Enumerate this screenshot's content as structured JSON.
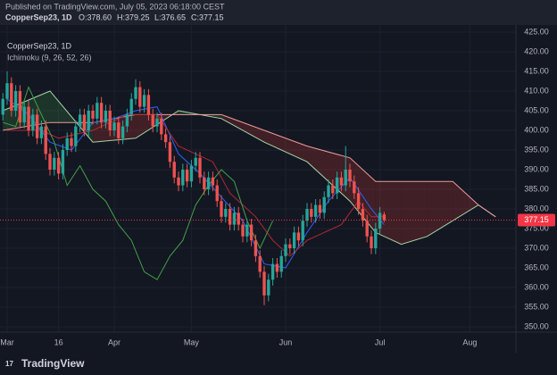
{
  "header": {
    "published": "Published on TradingView.com, July 05, 2023 06:18:00 CEST",
    "symbol": "CopperSep23, 1D",
    "ohlc": [
      "O:378.60",
      "H:379.25",
      "L:376.65",
      "C:377.15"
    ]
  },
  "footer": {
    "logo": "TradingView"
  },
  "chart_data": {
    "type": "candlestick",
    "symbol_label": "CopperSep23, 1D",
    "indicator_label": "Ichimoku (9, 26, 52, 26)",
    "up_color": "#26a69a",
    "down_color": "#ef5350",
    "xlim": [
      -1.67,
      118.75
    ],
    "ylim": [
      348.64,
      426.36
    ],
    "xticks": [
      {
        "value": 0,
        "label": "Mar"
      },
      {
        "value": 12,
        "label": "16"
      },
      {
        "value": 25,
        "label": "Apr"
      },
      {
        "value": 43,
        "label": "May"
      },
      {
        "value": 65,
        "label": "Jun"
      },
      {
        "value": 87,
        "label": "Jul"
      },
      {
        "value": 108,
        "label": "Aug"
      }
    ],
    "yticks": [
      {
        "value": 350,
        "label": "350.00"
      },
      {
        "value": 355,
        "label": "355.00"
      },
      {
        "value": 360,
        "label": "360.00"
      },
      {
        "value": 365,
        "label": "365.00"
      },
      {
        "value": 370,
        "label": "370.00"
      },
      {
        "value": 375,
        "label": "375.00"
      },
      {
        "value": 380,
        "label": "380.00"
      },
      {
        "value": 385,
        "label": "385.00"
      },
      {
        "value": 390,
        "label": "390.00"
      },
      {
        "value": 395,
        "label": "395.00"
      },
      {
        "value": 400,
        "label": "400.00"
      },
      {
        "value": 405,
        "label": "405.00"
      },
      {
        "value": 410,
        "label": "410.00"
      },
      {
        "value": 415,
        "label": "415.00"
      },
      {
        "value": 420,
        "label": "420.00"
      },
      {
        "value": 425,
        "label": "425.00"
      }
    ],
    "grid": true,
    "last_price": 377.15,
    "last_price_color": "#f23645",
    "x": [
      -1,
      0,
      1,
      2,
      3,
      4,
      5,
      6,
      7,
      8,
      9,
      10,
      11,
      12,
      13,
      14,
      15,
      16,
      17,
      18,
      19,
      20,
      21,
      22,
      23,
      24,
      25,
      26,
      27,
      28,
      29,
      30,
      31,
      32,
      33,
      34,
      35,
      36,
      37,
      38,
      39,
      40,
      41,
      42,
      43,
      44,
      45,
      46,
      47,
      48,
      49,
      50,
      51,
      52,
      53,
      54,
      55,
      56,
      57,
      58,
      59,
      60,
      61,
      62,
      63,
      64,
      65,
      66,
      67,
      68,
      69,
      70,
      71,
      72,
      73,
      74,
      75,
      76,
      77,
      78,
      79,
      80,
      81,
      82,
      83,
      84,
      85,
      86,
      87,
      88
    ],
    "candles": [
      [
        404,
        409.5,
        402.5,
        408
      ],
      [
        408,
        415,
        406.5,
        412
      ],
      [
        412,
        413.5,
        403.5,
        405
      ],
      [
        405,
        411.5,
        403.5,
        410
      ],
      [
        410,
        411.5,
        400.5,
        402
      ],
      [
        402,
        407.5,
        400.5,
        406
      ],
      [
        406,
        407.5,
        398.5,
        400
      ],
      [
        400,
        405.5,
        398.5,
        404
      ],
      [
        404,
        405.5,
        396.5,
        398
      ],
      [
        398,
        402.5,
        396.5,
        401
      ],
      [
        401,
        402.5,
        392.5,
        394
      ],
      [
        394,
        395.5,
        388.5,
        390
      ],
      [
        390,
        394.5,
        388.5,
        393
      ],
      [
        393,
        394.5,
        387.5,
        389
      ],
      [
        389,
        396.5,
        387.5,
        395
      ],
      [
        395,
        399.5,
        393.5,
        398
      ],
      [
        398,
        399.5,
        394.5,
        396
      ],
      [
        396,
        402.5,
        394.5,
        401
      ],
      [
        401,
        405.5,
        399.5,
        404
      ],
      [
        404,
        405.5,
        398.5,
        400
      ],
      [
        400,
        406.5,
        398.5,
        405
      ],
      [
        405,
        406.5,
        401.5,
        403
      ],
      [
        403,
        408.5,
        401.5,
        407
      ],
      [
        407,
        408.5,
        400.5,
        402
      ],
      [
        402,
        406.5,
        400.5,
        405
      ],
      [
        405,
        406.5,
        398.5,
        400
      ],
      [
        400,
        403.5,
        398.5,
        402
      ],
      [
        402,
        403.5,
        396.5,
        398
      ],
      [
        398,
        402.5,
        396.5,
        401
      ],
      [
        401,
        405.5,
        399.5,
        404
      ],
      [
        404,
        409.5,
        402.5,
        408
      ],
      [
        408,
        413,
        406.5,
        411
      ],
      [
        411,
        412.5,
        404.5,
        406
      ],
      [
        406,
        410.5,
        404.5,
        409
      ],
      [
        409,
        410.5,
        402.5,
        404
      ],
      [
        404,
        405.5,
        399.5,
        401
      ],
      [
        401,
        404.5,
        399.5,
        403
      ],
      [
        403,
        404.5,
        397.5,
        399
      ],
      [
        399,
        400.5,
        395.5,
        397
      ],
      [
        397,
        398.5,
        390.5,
        392
      ],
      [
        392,
        393.5,
        386.5,
        388
      ],
      [
        388,
        389.5,
        384.5,
        386
      ],
      [
        386,
        391.5,
        384.5,
        390
      ],
      [
        390,
        391.5,
        385.5,
        387
      ],
      [
        387,
        392.5,
        385.5,
        391
      ],
      [
        391,
        394.5,
        389.5,
        393
      ],
      [
        393,
        394.5,
        386.5,
        388
      ],
      [
        388,
        389.5,
        383.5,
        385
      ],
      [
        385,
        389.5,
        383.5,
        388
      ],
      [
        388,
        389.5,
        384.5,
        386
      ],
      [
        386,
        387.5,
        380.5,
        382
      ],
      [
        382,
        383.5,
        376.5,
        378
      ],
      [
        378,
        381.5,
        376.5,
        380
      ],
      [
        380,
        381.5,
        374.5,
        376
      ],
      [
        376,
        380.5,
        374.5,
        379
      ],
      [
        379,
        380.5,
        374.5,
        376
      ],
      [
        376,
        377.5,
        371.5,
        373
      ],
      [
        373,
        377.5,
        371.5,
        376
      ],
      [
        376,
        377.5,
        370.5,
        372
      ],
      [
        372,
        373.5,
        366.5,
        368
      ],
      [
        368,
        369.5,
        362.5,
        364
      ],
      [
        364,
        365.5,
        355.5,
        358
      ],
      [
        358,
        363.5,
        356.5,
        362
      ],
      [
        362,
        367.5,
        360.5,
        366
      ],
      [
        366,
        367.5,
        362.5,
        364
      ],
      [
        364,
        369.5,
        362.5,
        368
      ],
      [
        368,
        372.5,
        366.5,
        371
      ],
      [
        371,
        372.5,
        368.5,
        370
      ],
      [
        370,
        375.5,
        368.5,
        374
      ],
      [
        374,
        375.5,
        370.5,
        372
      ],
      [
        372,
        378.5,
        370.5,
        377
      ],
      [
        377,
        381.5,
        375.5,
        380
      ],
      [
        380,
        381.5,
        376.5,
        378
      ],
      [
        378,
        382.5,
        376.5,
        381
      ],
      [
        381,
        382.5,
        377.5,
        379
      ],
      [
        379,
        384.5,
        377.5,
        383
      ],
      [
        383,
        387.5,
        381.5,
        386
      ],
      [
        386,
        387.5,
        382.5,
        384
      ],
      [
        384,
        389.5,
        382.5,
        388
      ],
      [
        388,
        389.5,
        384.5,
        386
      ],
      [
        386,
        396,
        384.5,
        390
      ],
      [
        390,
        391.5,
        385.5,
        387
      ],
      [
        387,
        388.5,
        382.5,
        384
      ],
      [
        384,
        385.5,
        378.5,
        380
      ],
      [
        380,
        381.5,
        375.5,
        377
      ],
      [
        377,
        378.5,
        371.5,
        373
      ],
      [
        373,
        374.5,
        368.5,
        370
      ],
      [
        370,
        376.5,
        368.5,
        375
      ],
      [
        375,
        380.5,
        373.5,
        379
      ],
      [
        378.6,
        379.25,
        376.65,
        377.15
      ]
    ],
    "cloud": {
      "x": [
        -1,
        10,
        20,
        30,
        40,
        50,
        60,
        70,
        80,
        86,
        92,
        98,
        104,
        110,
        114
      ],
      "span_a": [
        405,
        410,
        397,
        398,
        405,
        403,
        397,
        392,
        382,
        374,
        371,
        373,
        377,
        381,
        378
      ],
      "span_b": [
        400,
        402,
        402,
        404,
        404,
        404,
        400,
        396,
        393,
        387,
        387,
        387,
        387,
        381,
        378
      ],
      "span_a_color": "#a5d6a7",
      "span_b_color": "#ef9a9a",
      "up_fill": "rgba(67,160,71,0.22)",
      "down_fill": "rgba(244,67,54,0.2)"
    },
    "lines": [
      {
        "color": "#2962ff",
        "x": [
          0,
          5,
          10,
          15,
          20,
          25,
          30,
          35,
          40,
          45,
          50,
          55,
          60,
          65,
          70,
          75,
          80,
          85,
          88
        ],
        "values": [
          408,
          404,
          397,
          395,
          402,
          403,
          405,
          406,
          394,
          389,
          383,
          377,
          366,
          365,
          374,
          382,
          388,
          380,
          376
        ]
      },
      {
        "color": "#b22833",
        "x": [
          0,
          8,
          12,
          20,
          28,
          35,
          40,
          48,
          52,
          58,
          62,
          66,
          70,
          78,
          82,
          85,
          88
        ],
        "values": [
          400,
          400,
          398,
          400,
          404,
          404,
          396,
          392,
          384,
          378,
          372,
          368,
          372,
          376,
          382,
          378,
          378
        ]
      },
      {
        "color": "#43a047",
        "x": [
          -1,
          2,
          5,
          8,
          11,
          14,
          17,
          20,
          23,
          26,
          29,
          32,
          35,
          38,
          41,
          44,
          47,
          50,
          53,
          56,
          59,
          62
        ],
        "values": [
          402,
          401,
          411,
          404,
          397,
          386,
          391,
          385,
          382,
          376,
          372,
          364,
          362,
          368,
          372,
          381,
          386,
          390,
          387,
          377,
          370,
          377
        ]
      }
    ]
  }
}
